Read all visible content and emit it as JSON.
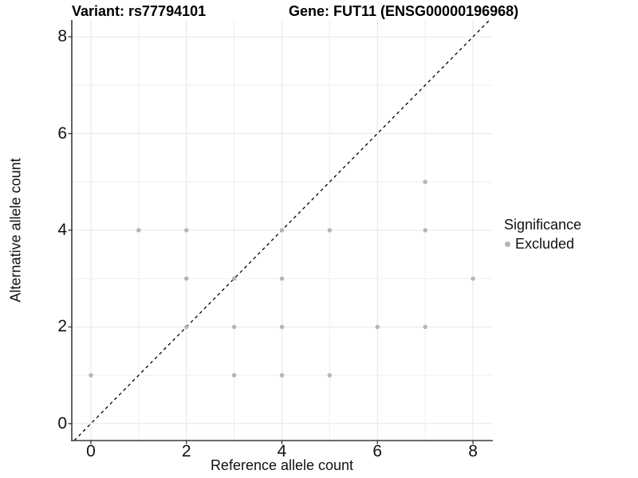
{
  "header": {
    "title_variant": "Variant: rs77794101",
    "title_gene": "Gene: FUT11 (ENSG00000196968)"
  },
  "chart_data": {
    "type": "scatter",
    "xlabel": "Reference allele count",
    "ylabel": "Alternative allele count",
    "xlim": [
      -0.4,
      8.4
    ],
    "ylim": [
      -0.35,
      8.35
    ],
    "xticks": [
      0,
      2,
      4,
      6,
      8
    ],
    "yticks": [
      0,
      2,
      4,
      6,
      8
    ],
    "grid_x": [
      0,
      1,
      2,
      3,
      4,
      5,
      6,
      7,
      8
    ],
    "grid_y": [
      0,
      1,
      2,
      3,
      4,
      5,
      6,
      7,
      8
    ],
    "grid": "on",
    "identity_line": {
      "type": "abline",
      "slope": 1,
      "intercept": 0,
      "style": "dashed",
      "color": "#000000"
    },
    "series": [
      {
        "name": "Excluded",
        "color": "#b4b4b4",
        "points": [
          [
            0,
            1
          ],
          [
            1,
            4
          ],
          [
            2,
            2
          ],
          [
            2,
            3
          ],
          [
            2,
            4
          ],
          [
            3,
            1
          ],
          [
            3,
            2
          ],
          [
            3,
            3
          ],
          [
            4,
            1
          ],
          [
            4,
            2
          ],
          [
            4,
            3
          ],
          [
            4,
            4
          ],
          [
            5,
            1
          ],
          [
            5,
            4
          ],
          [
            6,
            2
          ],
          [
            7,
            2
          ],
          [
            7,
            4
          ],
          [
            7,
            5
          ],
          [
            8,
            3
          ]
        ]
      }
    ],
    "legend": {
      "title": "Significance",
      "position": "right",
      "items": [
        {
          "label": "Excluded",
          "marker": "dot",
          "color": "#b4b4b4"
        }
      ]
    }
  },
  "colors": {
    "background": "#ffffff",
    "grid_major": "#e7e7e7",
    "grid_minor": "#f0f0f0",
    "axis_line": "#3c3c3c",
    "tick_mark": "#333333",
    "text": "#111111",
    "point": "#b4b4b4"
  }
}
